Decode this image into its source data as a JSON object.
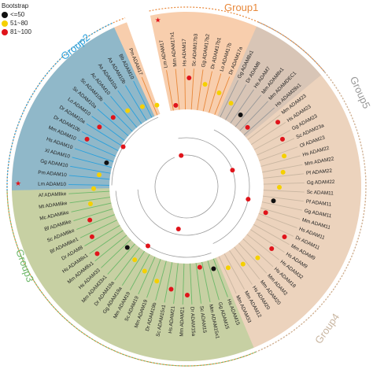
{
  "legend": {
    "title": "Bootstrap",
    "items": [
      {
        "label": "<=50",
        "color": "#111111"
      },
      {
        "label": "51~80",
        "color": "#f5d000"
      },
      {
        "label": "81~100",
        "color": "#e0141b"
      }
    ]
  },
  "groups": [
    {
      "label": "Group1",
      "color": "#e8883a",
      "fill": "#f3a56a"
    },
    {
      "label": "Group2",
      "color": "#2aa0dc",
      "fill": "#3aa6e0"
    },
    {
      "label": "Group3",
      "color": "#6db86a",
      "fill": "#9fd29b"
    },
    {
      "label": "Group4",
      "color": "#c9b6a1",
      "fill": "#e2d7cb"
    },
    {
      "label": "Group5",
      "color": "#999999",
      "fill": "#bdbdbd"
    }
  ],
  "leaves": [
    {
      "name": "Lm ADAM17",
      "group": 0,
      "star": true
    },
    {
      "name": "Mm ADAM17x1",
      "group": 0
    },
    {
      "name": "Hs ADAM17",
      "group": 0
    },
    {
      "name": "Sc ADAM17b3",
      "group": 0
    },
    {
      "name": "Gg ADAM17b2",
      "group": 0
    },
    {
      "name": "Dr ADAM17b1",
      "group": 0
    },
    {
      "name": "Lo ADAM17b",
      "group": 0
    },
    {
      "name": "Dr ADAM17a",
      "group": 0
    },
    {
      "name": "Gg ADAM8x1",
      "group": 4
    },
    {
      "name": "Dr ADAM8",
      "group": 4
    },
    {
      "name": "Hs ADAM7",
      "group": 4
    },
    {
      "name": "Mm ADAM8x1",
      "group": 4
    },
    {
      "name": "Mm ADAMDEC1",
      "group": 4
    },
    {
      "name": "Hs ADAM28x1",
      "group": 4
    },
    {
      "name": "Mm ADAM23",
      "group": 3
    },
    {
      "name": "Hs ADAM23",
      "group": 3
    },
    {
      "name": "Gg ADAM23",
      "group": 3
    },
    {
      "name": "Sc ADAM23a",
      "group": 3
    },
    {
      "name": "Ol ADAM23",
      "group": 3
    },
    {
      "name": "Hs ADAM22",
      "group": 3
    },
    {
      "name": "Mm ADAM22",
      "group": 3
    },
    {
      "name": "Pf ADAM22",
      "group": 3
    },
    {
      "name": "Gg ADAM22",
      "group": 3
    },
    {
      "name": "Sc ADAM11",
      "group": 3
    },
    {
      "name": "Pf ADAM11",
      "group": 3
    },
    {
      "name": "Gg ADAM11",
      "group": 3
    },
    {
      "name": "Mm ADAM11",
      "group": 3
    },
    {
      "name": "Hs ADAM11",
      "group": 3
    },
    {
      "name": "Dr ADAM11",
      "group": 3
    },
    {
      "name": "Mm ADAM9",
      "group": 3
    },
    {
      "name": "Hs ADAM9",
      "group": 3
    },
    {
      "name": "Hs ADAM32",
      "group": 3
    },
    {
      "name": "Hs ADAM18",
      "group": 3
    },
    {
      "name": "Mm ADAM2",
      "group": 3
    },
    {
      "name": "Mm ADAM20",
      "group": 3
    },
    {
      "name": "Hs ADAM20",
      "group": 3
    },
    {
      "name": "Mm ADAM12",
      "group": 3
    },
    {
      "name": "Mm ADAM33",
      "group": 3
    },
    {
      "name": "Hs ADAM15",
      "group": 2
    },
    {
      "name": "Gg ADAM15",
      "group": 2
    },
    {
      "name": "Mm ADAM15x1",
      "group": 2
    },
    {
      "name": "Sc ADAM15",
      "group": 2
    },
    {
      "name": "Dr ADAM15a",
      "group": 2
    },
    {
      "name": "Mm ADAM21",
      "group": 2
    },
    {
      "name": "Hs ADAM21",
      "group": 2
    },
    {
      "name": "Sc ADAM15x1",
      "group": 2
    },
    {
      "name": "Dr ADAM19b",
      "group": 2
    },
    {
      "name": "Mm ADAM19",
      "group": 2
    },
    {
      "name": "Sc ADAM19",
      "group": 2
    },
    {
      "name": "Mm ADAM19",
      "group": 2
    },
    {
      "name": "Gg ADAM19a",
      "group": 2
    },
    {
      "name": "Dr ADAM19a",
      "group": 2
    },
    {
      "name": "Mm ADAM33x1",
      "group": 2
    },
    {
      "name": "Hs ADAM33",
      "group": 2
    },
    {
      "name": "Mm ADAM8x1",
      "group": 2
    },
    {
      "name": "Hs ADAM8x1",
      "group": 2
    },
    {
      "name": "Dr ADAM8",
      "group": 2
    },
    {
      "name": "Bf ADAMlike1",
      "group": 2
    },
    {
      "name": "Sc ADAMlike",
      "group": 2
    },
    {
      "name": "Bf ADAMlike",
      "group": 2
    },
    {
      "name": "Mc ADAMlike",
      "group": 2
    },
    {
      "name": "Mt ADAMlike",
      "group": 2
    },
    {
      "name": "Af ADAMlike",
      "group": 2
    },
    {
      "name": "Lm ADAM10",
      "group": 1,
      "star": true
    },
    {
      "name": "Pm ADAM10",
      "group": 1
    },
    {
      "name": "Gg ADAM10",
      "group": 1
    },
    {
      "name": "Xl ADAM10",
      "group": 1
    },
    {
      "name": "Hs ADAM10",
      "group": 1
    },
    {
      "name": "Mm ADAM10",
      "group": 1
    },
    {
      "name": "Dr ADAM10b",
      "group": 1
    },
    {
      "name": "Dr ADAM10a",
      "group": 1
    },
    {
      "name": "Lo ADAM10",
      "group": 1
    },
    {
      "name": "Sc ADAM10a",
      "group": 1
    },
    {
      "name": "Sc ADAM10b",
      "group": 1
    },
    {
      "name": "Ac ADAM10",
      "group": 1
    },
    {
      "name": "As ADAM10a",
      "group": 1
    },
    {
      "name": "As ADAM10b",
      "group": 1
    },
    {
      "name": "Bb ADAM10",
      "group": 1
    },
    {
      "name": "Pm ADAM17",
      "group": 0
    }
  ]
}
